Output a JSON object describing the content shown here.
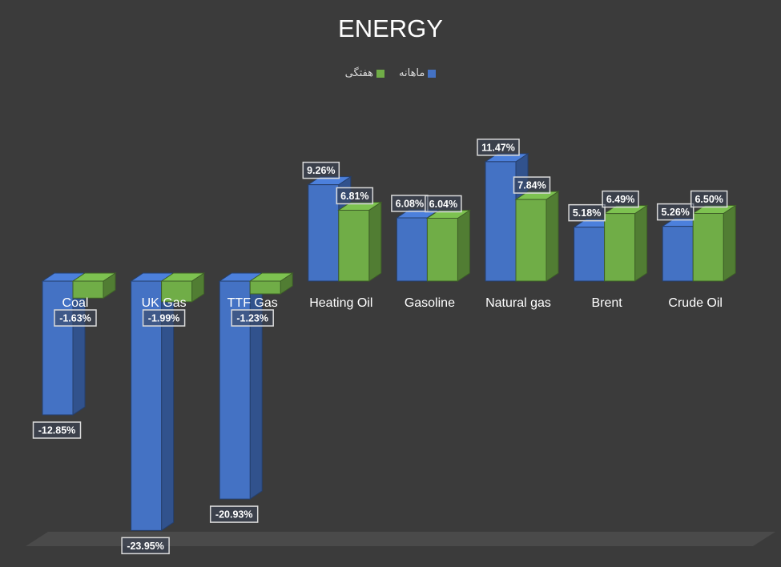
{
  "chart_data": {
    "type": "bar",
    "title": "ENERGY",
    "categories": [
      "Coal",
      "UK Gas",
      "TTF Gas",
      "Heating Oil",
      "Gasoline",
      "Natural gas",
      "Brent",
      "Crude Oil"
    ],
    "series": [
      {
        "name": "ماهانه",
        "color": "#4472c4",
        "values": [
          -12.85,
          -23.95,
          -20.93,
          9.26,
          6.08,
          11.47,
          5.18,
          5.26
        ],
        "labels": [
          "-12.85%",
          "-23.95%",
          "-20.93%",
          "9.26%",
          "6.08%",
          "11.47%",
          "5.18%",
          "5.26%"
        ]
      },
      {
        "name": "هفتگی",
        "color": "#70ad47",
        "values": [
          -1.63,
          -1.99,
          -1.23,
          6.81,
          6.04,
          7.84,
          6.49,
          6.5
        ],
        "labels": [
          "-1.63%",
          "-1.99%",
          "-1.23%",
          "6.81%",
          "6.04%",
          "7.84%",
          "6.49%",
          "6.50%"
        ]
      }
    ],
    "legend_position": "top",
    "grid": false
  }
}
